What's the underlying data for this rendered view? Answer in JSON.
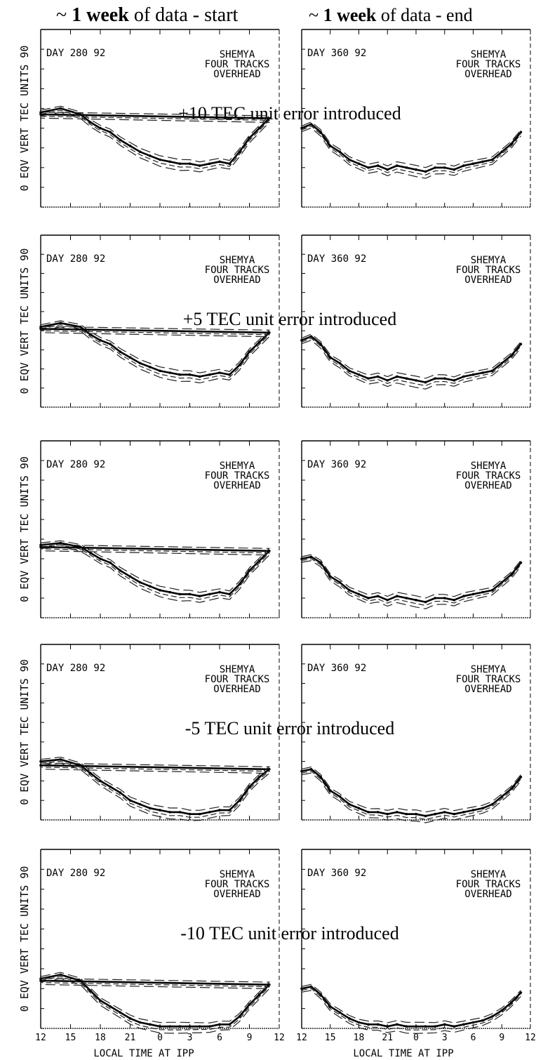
{
  "column_headers": {
    "left": {
      "prefix": "~ ",
      "bold": "1 week",
      "rest": " of data - start"
    },
    "right": {
      "prefix": "~ ",
      "bold": "1 week",
      "rest": " of data - end"
    }
  },
  "y_axis_label": "0 EQV VERT TEC UNITS 90",
  "y_axis_ticks": [
    "0",
    "90"
  ],
  "x_axis_label": "LOCAL TIME AT IPP",
  "x_tick_labels": {
    "left": [
      "12",
      "15",
      "18",
      "21",
      "0",
      "3",
      "6",
      "9",
      "12"
    ],
    "right": [
      "12",
      "15",
      "18",
      "21",
      "0",
      "3",
      "6",
      "9",
      "12"
    ]
  },
  "station": {
    "line1": "SHEMYA",
    "line2": "FOUR TRACKS",
    "line3": "OVERHEAD"
  },
  "chart_data": [
    {
      "type": "line",
      "row": 1,
      "column": "start",
      "day_label": "DAY 280 92",
      "annotation": "+10 TEC unit error introduced",
      "xlabel": "",
      "ylabel": "EQV VERT TEC UNITS",
      "ylim": [
        0,
        90
      ],
      "series": [
        {
          "x": [
            12,
            14,
            16,
            17,
            18,
            19,
            20,
            21,
            22,
            23,
            0,
            1,
            2,
            3,
            4,
            5,
            6,
            7,
            8,
            9,
            10,
            11,
            12
          ],
          "values": [
            48,
            50,
            47,
            43,
            40,
            38,
            34,
            31,
            28,
            26,
            24,
            23,
            22,
            22,
            21,
            22,
            23,
            22,
            28,
            35,
            40,
            45,
            47
          ]
        }
      ]
    },
    {
      "type": "line",
      "row": 1,
      "column": "end",
      "day_label": "DAY 360 92",
      "xlabel": "",
      "ylabel": "EQV VERT TEC UNITS",
      "ylim": [
        0,
        90
      ],
      "series": [
        {
          "x": [
            12,
            13,
            14,
            15,
            16,
            17,
            18,
            19,
            20,
            21,
            22,
            23,
            0,
            1,
            2,
            3,
            4,
            5,
            6,
            7,
            8,
            9,
            10,
            11
          ],
          "values": [
            40,
            42,
            38,
            31,
            28,
            24,
            22,
            20,
            21,
            19,
            21,
            20,
            19,
            18,
            20,
            20,
            19,
            21,
            22,
            23,
            24,
            28,
            32,
            38
          ]
        }
      ]
    },
    {
      "type": "line",
      "row": 2,
      "column": "start",
      "day_label": "DAY 280 92",
      "annotation": "+5 TEC unit error introduced",
      "xlabel": "",
      "ylabel": "EQV VERT TEC UNITS",
      "ylim": [
        0,
        90
      ],
      "series": [
        {
          "x": [
            12,
            14,
            16,
            17,
            18,
            19,
            20,
            21,
            22,
            23,
            0,
            1,
            2,
            3,
            4,
            5,
            6,
            7,
            8,
            9,
            10,
            11,
            12
          ],
          "values": [
            42,
            44,
            42,
            38,
            35,
            33,
            29,
            26,
            23,
            21,
            19,
            18,
            17,
            17,
            16,
            17,
            18,
            17,
            22,
            29,
            34,
            39,
            41
          ]
        }
      ]
    },
    {
      "type": "line",
      "row": 2,
      "column": "end",
      "day_label": "DAY 360 92",
      "xlabel": "",
      "ylabel": "EQV VERT TEC UNITS",
      "ylim": [
        0,
        90
      ],
      "series": [
        {
          "x": [
            12,
            13,
            14,
            15,
            16,
            17,
            18,
            19,
            20,
            21,
            22,
            23,
            0,
            1,
            2,
            3,
            4,
            5,
            6,
            7,
            8,
            9,
            10,
            11
          ],
          "values": [
            35,
            37,
            33,
            26,
            23,
            19,
            17,
            15,
            16,
            14,
            16,
            15,
            14,
            13,
            15,
            15,
            14,
            16,
            17,
            18,
            19,
            23,
            27,
            33
          ]
        }
      ]
    },
    {
      "type": "line",
      "row": 3,
      "column": "start",
      "day_label": "DAY 280 92",
      "xlabel": "",
      "ylabel": "EQV VERT TEC UNITS",
      "ylim": [
        0,
        90
      ],
      "series": [
        {
          "x": [
            12,
            14,
            16,
            17,
            18,
            19,
            20,
            21,
            22,
            23,
            0,
            1,
            2,
            3,
            4,
            5,
            6,
            7,
            8,
            9,
            10,
            11,
            12
          ],
          "values": [
            37,
            38,
            36,
            33,
            30,
            28,
            24,
            21,
            18,
            16,
            14,
            13,
            12,
            12,
            11,
            12,
            13,
            12,
            17,
            24,
            29,
            34,
            36
          ]
        }
      ]
    },
    {
      "type": "line",
      "row": 3,
      "column": "end",
      "day_label": "DAY 360 92",
      "xlabel": "",
      "ylabel": "EQV VERT TEC UNITS",
      "ylim": [
        0,
        90
      ],
      "series": [
        {
          "x": [
            12,
            13,
            14,
            15,
            16,
            17,
            18,
            19,
            20,
            21,
            22,
            23,
            0,
            1,
            2,
            3,
            4,
            5,
            6,
            7,
            8,
            9,
            10,
            11
          ],
          "values": [
            30,
            31,
            28,
            21,
            18,
            14,
            12,
            10,
            11,
            9,
            11,
            10,
            9,
            8,
            10,
            10,
            9,
            11,
            12,
            13,
            14,
            18,
            22,
            28
          ]
        }
      ]
    },
    {
      "type": "line",
      "row": 4,
      "column": "start",
      "day_label": "DAY 280 92",
      "annotation": "-5 TEC unit error introduced",
      "xlabel": "",
      "ylabel": "EQV VERT TEC UNITS",
      "ylim": [
        0,
        90
      ],
      "series": [
        {
          "x": [
            12,
            14,
            16,
            17,
            18,
            19,
            20,
            21,
            22,
            23,
            0,
            1,
            2,
            3,
            4,
            5,
            6,
            7,
            8,
            9,
            10,
            11,
            12
          ],
          "values": [
            30,
            31,
            28,
            24,
            20,
            17,
            14,
            10,
            8,
            6,
            5,
            4,
            4,
            3,
            3,
            4,
            5,
            5,
            10,
            17,
            22,
            26,
            28
          ]
        }
      ]
    },
    {
      "type": "line",
      "row": 4,
      "column": "end",
      "day_label": "DAY 360 92",
      "xlabel": "",
      "ylabel": "EQV VERT TEC UNITS",
      "ylim": [
        0,
        90
      ],
      "series": [
        {
          "x": [
            12,
            13,
            14,
            15,
            16,
            17,
            18,
            19,
            20,
            21,
            22,
            23,
            0,
            1,
            2,
            3,
            4,
            5,
            6,
            7,
            8,
            9,
            10,
            11
          ],
          "values": [
            25,
            26,
            22,
            15,
            12,
            8,
            6,
            4,
            4,
            3,
            4,
            3,
            3,
            2,
            3,
            4,
            3,
            4,
            5,
            6,
            8,
            12,
            16,
            22
          ]
        }
      ]
    },
    {
      "type": "line",
      "row": 5,
      "column": "start",
      "day_label": "DAY 280 92",
      "annotation": "-10 TEC unit error introduced",
      "xlabel": "LOCAL TIME AT IPP",
      "ylabel": "EQV VERT TEC UNITS",
      "ylim": [
        0,
        90
      ],
      "series": [
        {
          "x": [
            12,
            14,
            16,
            17,
            18,
            19,
            20,
            21,
            22,
            23,
            0,
            1,
            2,
            3,
            4,
            5,
            6,
            7,
            8,
            9,
            10,
            11,
            12
          ],
          "values": [
            25,
            27,
            24,
            19,
            14,
            11,
            8,
            5,
            3,
            2,
            1,
            1,
            1,
            1,
            1,
            1,
            2,
            2,
            6,
            12,
            17,
            22,
            24
          ]
        }
      ]
    },
    {
      "type": "line",
      "row": 5,
      "column": "end",
      "day_label": "DAY 360 92",
      "xlabel": "LOCAL TIME AT IPP",
      "ylabel": "EQV VERT TEC UNITS",
      "ylim": [
        0,
        90
      ],
      "series": [
        {
          "x": [
            12,
            13,
            14,
            15,
            16,
            17,
            18,
            19,
            20,
            21,
            22,
            23,
            0,
            1,
            2,
            3,
            4,
            5,
            6,
            7,
            8,
            9,
            10,
            11
          ],
          "values": [
            20,
            21,
            17,
            11,
            8,
            5,
            3,
            2,
            2,
            1,
            2,
            1,
            1,
            1,
            1,
            2,
            1,
            2,
            3,
            4,
            6,
            9,
            13,
            18
          ]
        }
      ]
    }
  ]
}
